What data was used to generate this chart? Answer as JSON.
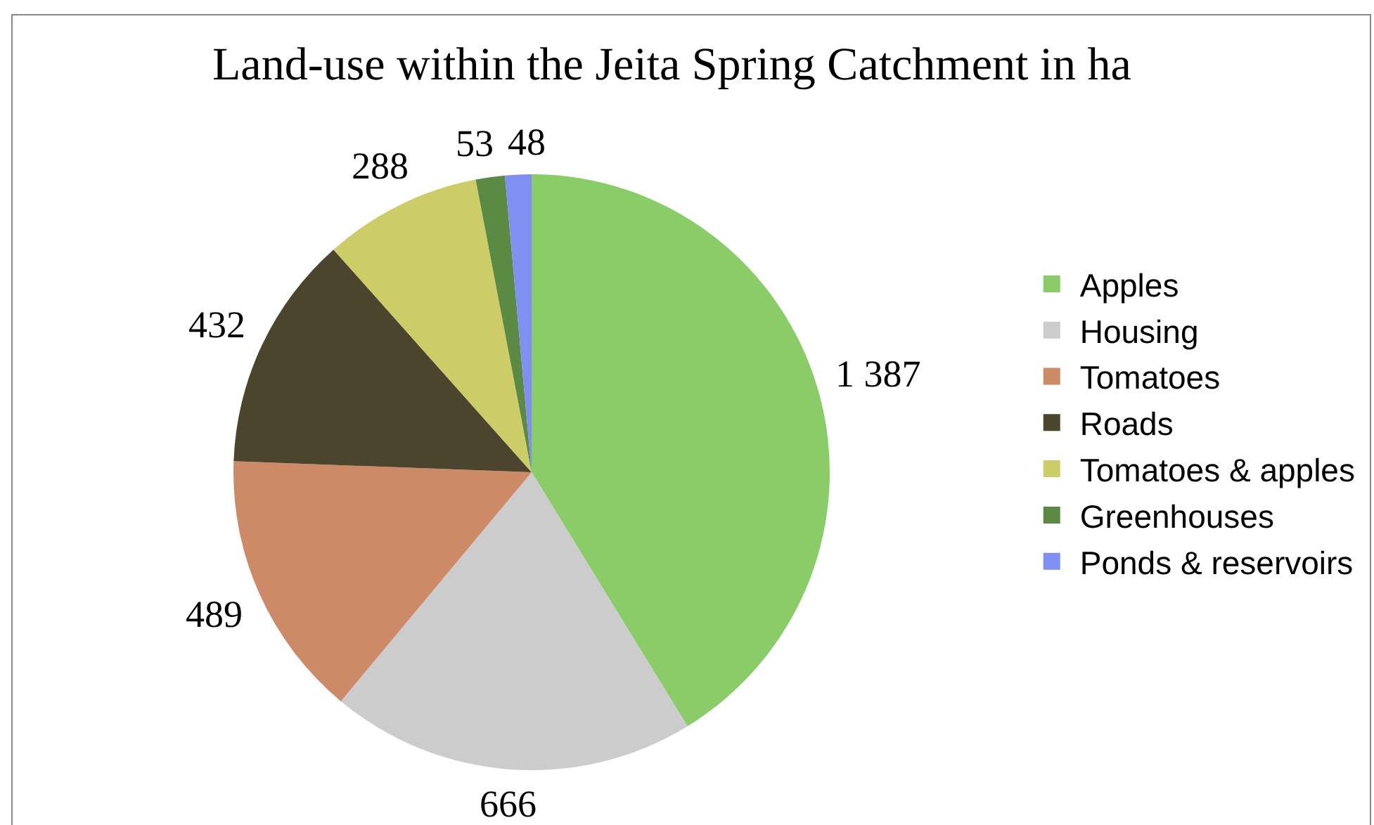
{
  "chart_data": {
    "type": "pie",
    "title": "Land-use within the Jeita Spring Catchment in ha",
    "categories": [
      "Apples",
      "Housing",
      "Tomatoes",
      "Roads",
      "Tomatoes & apples",
      "Greenhouses",
      "Ponds & reservoirs"
    ],
    "values": [
      1387,
      666,
      489,
      432,
      288,
      53,
      48
    ],
    "value_labels": [
      "1 387",
      "666",
      "489",
      "432",
      "288",
      "53",
      "48"
    ],
    "colors": [
      "#8acd68",
      "#cccccc",
      "#cd8a66",
      "#4b452e",
      "#cdcd68",
      "#5b8a44",
      "#7f8ff2"
    ],
    "legend": "right"
  }
}
